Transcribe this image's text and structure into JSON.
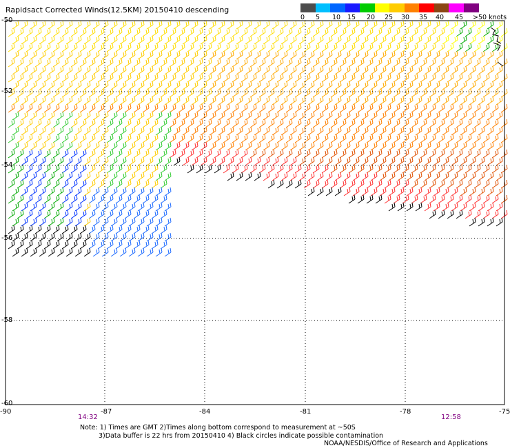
{
  "title": "Rapidsact Corrected Winds(12.5KM) 20150410 descending",
  "colorbar": {
    "labels": [
      "0",
      "5",
      "10",
      "15",
      "20",
      "25",
      "30",
      "35",
      "40",
      "45",
      ">50 knots"
    ],
    "colors": [
      "#4d4d4d",
      "#00bfff",
      "#0066ff",
      "#1a1aff",
      "#00cc00",
      "#ffff00",
      "#ffcc00",
      "#ff8000",
      "#ff0000",
      "#8b4513",
      "#ff00ff",
      "#800080"
    ]
  },
  "map": {
    "lat_labels": [
      "-50",
      "-52",
      "-54",
      "-56",
      "-58",
      "-60"
    ],
    "lon_labels": [
      "-90",
      "-87",
      "-84",
      "-81",
      "-78",
      "-75"
    ],
    "time_labels": [
      "14:32",
      "12:58"
    ],
    "grid": "dotted"
  },
  "notes": {
    "line1": "Note: 1) Times are GMT 2)Times along bottom correspond to measurement at ~50S",
    "line2": "3)Data buffer is 22 hrs from 20150410 4) Black circles indicate possible contamination",
    "line3": "NOAA/NESDIS/Office of Research and Applications"
  }
}
